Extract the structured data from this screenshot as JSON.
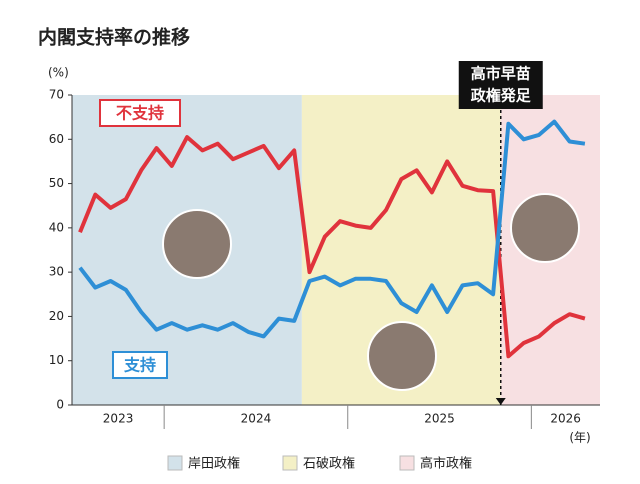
{
  "chart_data": {
    "type": "line",
    "title": "内閣支持率の推移",
    "y_unit": "(%)",
    "x_unit": "(年)",
    "categories": [
      null,
      null,
      null,
      null,
      null,
      null,
      null,
      null,
      null,
      null,
      null,
      null,
      null,
      null,
      null,
      null,
      null,
      null,
      null,
      null,
      null,
      null,
      null,
      null,
      null,
      null,
      null,
      null,
      null,
      null,
      null,
      null,
      null,
      null
    ],
    "series": [
      {
        "name": "不支持",
        "color": "#e0333c",
        "values": [
          39,
          47.5,
          44.5,
          46.5,
          53,
          58,
          54,
          60.5,
          57.5,
          59,
          55.5,
          57,
          58.5,
          53.5,
          57.5,
          30,
          38,
          41.5,
          40.5,
          40,
          44,
          51,
          53,
          48,
          55,
          49.5,
          48.5,
          48.3,
          11,
          14,
          15.5,
          18.5,
          20.5,
          19.5
        ]
      },
      {
        "name": "支持",
        "color": "#2e8fd6",
        "values": [
          31,
          26.5,
          28,
          26,
          21,
          17,
          18.5,
          17,
          18,
          17,
          18.5,
          16.5,
          15.5,
          19.5,
          19,
          28,
          29,
          27,
          28.5,
          28.5,
          28,
          23,
          21,
          27,
          21,
          27,
          27.5,
          25,
          63.5,
          60,
          61,
          64,
          59.5,
          59
        ]
      }
    ],
    "ylim": [
      0,
      70
    ],
    "yticks": [
      0,
      10,
      20,
      30,
      40,
      50,
      60,
      70
    ],
    "periods": [
      {
        "name": "岸田政権",
        "color": "#d3e2ea",
        "start": 0,
        "end": 14
      },
      {
        "name": "石破政権",
        "color": "#f4f0c6",
        "start": 15,
        "end": 27
      },
      {
        "name": "高市政権",
        "color": "#f7e0e2",
        "start": 28,
        "end": 33
      }
    ],
    "year_groups": [
      {
        "label": "2023",
        "start": 0,
        "end": 5
      },
      {
        "label": "2024",
        "start": 6,
        "end": 17
      },
      {
        "label": "2025",
        "start": 18,
        "end": 29
      },
      {
        "label": "2026",
        "start": 30,
        "end": 33
      }
    ],
    "event": {
      "lines": [
        "高市早苗",
        "政権発足"
      ],
      "index": 28
    }
  }
}
